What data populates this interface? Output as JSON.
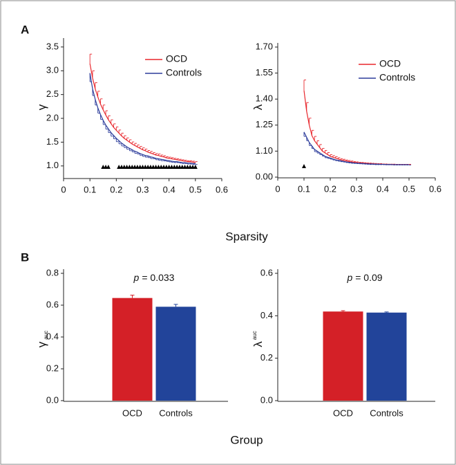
{
  "panel_labels": [
    "A",
    "B"
  ],
  "shared_xlabels": [
    "Sparsity",
    "Group"
  ],
  "chart_data": [
    {
      "type": "line",
      "ylabel": "γ",
      "xlim": [
        0,
        0.6
      ],
      "xticks": [
        0,
        0.1,
        0.2,
        0.3,
        0.4,
        0.5,
        0.6
      ],
      "ylim": [
        0.75,
        3.6
      ],
      "yticks": [
        {
          "value": 1,
          "label": "1.0"
        },
        1.5,
        {
          "value": 2,
          "label": "2.0"
        },
        2.5,
        {
          "value": 3,
          "label": "3.0"
        },
        3.5
      ],
      "legend": "upper right",
      "x": [
        0.1,
        0.11,
        0.12,
        0.13,
        0.14,
        0.15,
        0.16,
        0.17,
        0.18,
        0.19,
        0.2,
        0.21,
        0.22,
        0.23,
        0.24,
        0.25,
        0.26,
        0.27,
        0.28,
        0.29,
        0.3,
        0.31,
        0.32,
        0.33,
        0.34,
        0.35,
        0.36,
        0.37,
        0.38,
        0.39,
        0.4,
        0.41,
        0.42,
        0.43,
        0.44,
        0.45,
        0.46,
        0.47,
        0.48,
        0.49,
        0.5
      ],
      "series": [
        {
          "name": "OCD",
          "color": "#e8262c",
          "error_direction": "up",
          "values": [
            3.15,
            2.85,
            2.62,
            2.45,
            2.3,
            2.18,
            2.07,
            1.97,
            1.89,
            1.81,
            1.75,
            1.69,
            1.63,
            1.58,
            1.54,
            1.5,
            1.46,
            1.43,
            1.4,
            1.37,
            1.34,
            1.32,
            1.29,
            1.27,
            1.25,
            1.23,
            1.22,
            1.2,
            1.19,
            1.17,
            1.16,
            1.15,
            1.14,
            1.13,
            1.12,
            1.11,
            1.1,
            1.09,
            1.09,
            1.08,
            1.07
          ],
          "errors": [
            0.2,
            0.15,
            0.13,
            0.12,
            0.11,
            0.1,
            0.09,
            0.085,
            0.08,
            0.075,
            0.07,
            0.065,
            0.06,
            0.055,
            0.05,
            0.05,
            0.045,
            0.045,
            0.04,
            0.04,
            0.04,
            0.035,
            0.035,
            0.035,
            0.03,
            0.03,
            0.03,
            0.03,
            0.025,
            0.025,
            0.025,
            0.025,
            0.02,
            0.02,
            0.02,
            0.02,
            0.02,
            0.02,
            0.02,
            0.02,
            0.02
          ]
        },
        {
          "name": "Controls",
          "color": "#2b3b9a",
          "error_direction": "down",
          "values": [
            2.95,
            2.62,
            2.4,
            2.22,
            2.08,
            1.96,
            1.86,
            1.78,
            1.7,
            1.64,
            1.58,
            1.53,
            1.48,
            1.44,
            1.4,
            1.37,
            1.34,
            1.31,
            1.29,
            1.26,
            1.24,
            1.22,
            1.21,
            1.19,
            1.18,
            1.16,
            1.15,
            1.14,
            1.13,
            1.12,
            1.11,
            1.1,
            1.09,
            1.09,
            1.08,
            1.07,
            1.07,
            1.06,
            1.06,
            1.05,
            1.05
          ],
          "errors": [
            0.18,
            0.14,
            0.12,
            0.11,
            0.1,
            0.09,
            0.085,
            0.08,
            0.075,
            0.07,
            0.07,
            0.065,
            0.06,
            0.055,
            0.05,
            0.05,
            0.045,
            0.045,
            0.04,
            0.04,
            0.04,
            0.035,
            0.035,
            0.035,
            0.03,
            0.03,
            0.03,
            0.03,
            0.025,
            0.025,
            0.025,
            0.025,
            0.02,
            0.02,
            0.02,
            0.02,
            0.02,
            0.02,
            0.02,
            0.02,
            0.02
          ]
        }
      ],
      "significant_x": [
        0.15,
        0.16,
        0.17,
        0.21,
        0.22,
        0.23,
        0.24,
        0.25,
        0.26,
        0.27,
        0.28,
        0.29,
        0.3,
        0.31,
        0.32,
        0.33,
        0.34,
        0.35,
        0.36,
        0.37,
        0.38,
        0.39,
        0.4,
        0.41,
        0.42,
        0.43,
        0.44,
        0.45,
        0.46,
        0.47,
        0.48,
        0.49,
        0.5
      ]
    },
    {
      "type": "line",
      "ylabel": "λ",
      "xlim": [
        0,
        0.6
      ],
      "xticks": [
        0,
        0.1,
        0.2,
        0.3,
        0.4,
        0.5,
        0.6
      ],
      "ylim": [
        0,
        1.7
      ],
      "ybreak": [
        0,
        0.95
      ],
      "yticks": [
        {
          "value": 0,
          "label": "0.00"
        },
        {
          "value": 1.1,
          "label": "1.10"
        },
        1.25,
        {
          "value": 1.4,
          "label": "1.40"
        },
        1.55,
        {
          "value": 1.7,
          "label": "1.70"
        }
      ],
      "legend": "upper right",
      "x": [
        0.1,
        0.11,
        0.12,
        0.13,
        0.14,
        0.15,
        0.16,
        0.17,
        0.18,
        0.19,
        0.2,
        0.21,
        0.22,
        0.23,
        0.24,
        0.25,
        0.26,
        0.27,
        0.28,
        0.29,
        0.3,
        0.31,
        0.32,
        0.33,
        0.34,
        0.35,
        0.36,
        0.37,
        0.38,
        0.39,
        0.4,
        0.41,
        0.42,
        0.43,
        0.44,
        0.45,
        0.46,
        0.47,
        0.48,
        0.49,
        0.5
      ],
      "series": [
        {
          "name": "OCD",
          "color": "#e8262c",
          "error_direction": "up",
          "values": [
            1.45,
            1.33,
            1.25,
            1.19,
            1.16,
            1.14,
            1.12,
            1.1,
            1.09,
            1.08,
            1.07,
            1.065,
            1.06,
            1.055,
            1.05,
            1.047,
            1.044,
            1.041,
            1.038,
            1.036,
            1.034,
            1.032,
            1.031,
            1.03,
            1.029,
            1.028,
            1.027,
            1.026,
            1.025,
            1.025,
            1.024,
            1.024,
            1.023,
            1.023,
            1.023,
            1.022,
            1.022,
            1.022,
            1.022,
            1.022,
            1.022
          ],
          "errors": [
            0.06,
            0.05,
            0.04,
            0.03,
            0.025,
            0.02,
            0.018,
            0.016,
            0.014,
            0.012,
            0.01,
            0.009,
            0.008,
            0.007,
            0.006,
            0.006,
            0.005,
            0.005,
            0.005,
            0.004,
            0.004,
            0.004,
            0.004,
            0.003,
            0.003,
            0.003,
            0.003,
            0.003,
            0.003,
            0.003,
            0.002,
            0.002,
            0.002,
            0.002,
            0.002,
            0.002,
            0.002,
            0.002,
            0.002,
            0.002,
            0.002
          ]
        },
        {
          "name": "Controls",
          "color": "#2b3b9a",
          "error_direction": "down",
          "values": [
            1.21,
            1.18,
            1.15,
            1.13,
            1.11,
            1.1,
            1.09,
            1.08,
            1.07,
            1.065,
            1.06,
            1.055,
            1.05,
            1.047,
            1.044,
            1.041,
            1.038,
            1.036,
            1.034,
            1.032,
            1.031,
            1.03,
            1.029,
            1.028,
            1.027,
            1.026,
            1.026,
            1.025,
            1.025,
            1.024,
            1.024,
            1.023,
            1.023,
            1.023,
            1.022,
            1.022,
            1.022,
            1.022,
            1.022,
            1.022,
            1.022
          ],
          "errors": [
            0.025,
            0.02,
            0.018,
            0.015,
            0.013,
            0.011,
            0.01,
            0.009,
            0.008,
            0.007,
            0.006,
            0.006,
            0.005,
            0.005,
            0.005,
            0.004,
            0.004,
            0.004,
            0.004,
            0.003,
            0.003,
            0.003,
            0.003,
            0.003,
            0.003,
            0.003,
            0.003,
            0.003,
            0.003,
            0.002,
            0.002,
            0.002,
            0.002,
            0.002,
            0.002,
            0.002,
            0.002,
            0.002,
            0.002,
            0.002,
            0.002
          ]
        }
      ],
      "significant_x": [
        0.1
      ]
    },
    {
      "type": "bar",
      "ylabel": "γ",
      "ylabel_sub": "auc",
      "annotation": {
        "italic": "p",
        "text": "= 0.033"
      },
      "categories": [
        "OCD",
        "Controls"
      ],
      "values": [
        0.645,
        0.59
      ],
      "errors": [
        0.018,
        0.015
      ],
      "colors": [
        "#d42027",
        "#22449a"
      ],
      "ylim": [
        0,
        0.8
      ],
      "yticks": [
        {
          "value": 0,
          "label": "0.0"
        },
        0.2,
        0.4,
        0.6,
        0.8
      ]
    },
    {
      "type": "bar",
      "ylabel": "λ",
      "ylabel_sup": "auc",
      "annotation": {
        "italic": "p",
        "text": "= 0.09"
      },
      "categories": [
        "OCD",
        "Controls"
      ],
      "values": [
        0.42,
        0.415
      ],
      "errors": [
        0.004,
        0.003
      ],
      "colors": [
        "#d42027",
        "#22449a"
      ],
      "ylim": [
        0,
        0.6
      ],
      "yticks": [
        {
          "value": 0,
          "label": "0.0"
        },
        0.2,
        0.4,
        0.6
      ]
    }
  ]
}
